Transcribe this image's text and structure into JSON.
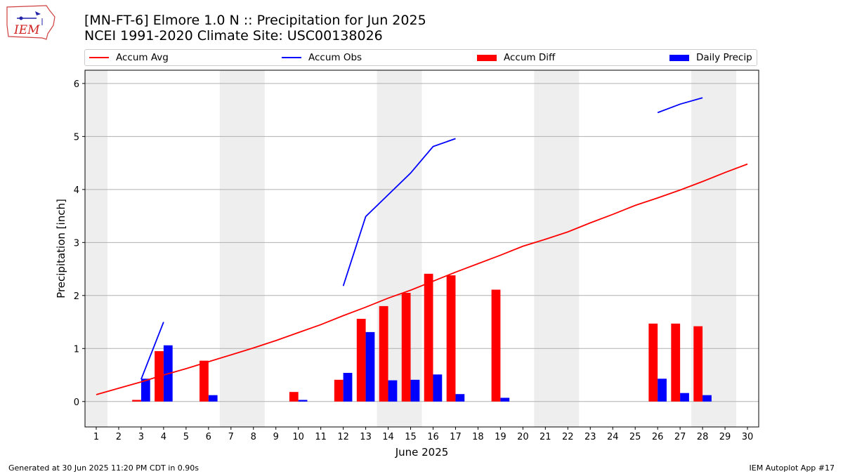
{
  "header": {
    "logo_text": "IEM",
    "title_line1": "[MN-FT-6] Elmore 1.0 N :: Precipitation for Jun 2025",
    "title_line2": "NCEI 1991-2020 Climate Site: USC00138026"
  },
  "legend": {
    "items": [
      {
        "label": "Accum Avg",
        "kind": "line",
        "color": "#ff0000"
      },
      {
        "label": "Accum Obs",
        "kind": "line",
        "color": "#0000ff"
      },
      {
        "label": "Accum Diff",
        "kind": "patch",
        "color": "#ff0000"
      },
      {
        "label": "Daily Precip",
        "kind": "patch",
        "color": "#0000ff"
      }
    ]
  },
  "footer": {
    "left": "Generated at 30 Jun 2025 11:20 PM CDT in 0.90s",
    "right": "IEM Autoplot App #17"
  },
  "chart_data": {
    "type": "bar",
    "xlabel": "June 2025",
    "ylabel": "Precipitation [inch]",
    "xlim": [
      0.5,
      30.5
    ],
    "ylim": [
      -0.48,
      6.25
    ],
    "xticks": [
      "1",
      "2",
      "3",
      "4",
      "5",
      "6",
      "7",
      "8",
      "9",
      "10",
      "11",
      "12",
      "13",
      "14",
      "15",
      "16",
      "17",
      "18",
      "19",
      "20",
      "21",
      "22",
      "23",
      "24",
      "25",
      "26",
      "27",
      "28",
      "29",
      "30"
    ],
    "yticks": [
      0,
      1,
      2,
      3,
      4,
      5,
      6
    ],
    "grid": "horizontal",
    "weekend_shading": [
      [
        0.5,
        1.5
      ],
      [
        6.5,
        8.5
      ],
      [
        13.5,
        15.5
      ],
      [
        20.5,
        22.5
      ],
      [
        27.5,
        29.5
      ]
    ],
    "shade_color": "#eeeeee",
    "series": [
      {
        "name": "Accum Avg",
        "kind": "line",
        "color": "#ff0000",
        "x": [
          1,
          2,
          3,
          4,
          5,
          6,
          7,
          8,
          9,
          10,
          11,
          12,
          13,
          14,
          15,
          16,
          17,
          18,
          19,
          20,
          21,
          22,
          23,
          24,
          25,
          26,
          27,
          28,
          29,
          30
        ],
        "values": [
          0.13,
          0.25,
          0.37,
          0.5,
          0.62,
          0.75,
          0.88,
          1.01,
          1.15,
          1.3,
          1.45,
          1.62,
          1.78,
          1.95,
          2.1,
          2.27,
          2.44,
          2.6,
          2.76,
          2.93,
          3.06,
          3.2,
          3.37,
          3.53,
          3.7,
          3.84,
          3.99,
          4.15,
          4.32,
          4.48
        ]
      },
      {
        "name": "Accum Obs",
        "kind": "line",
        "color": "#0000ff",
        "segments": [
          {
            "x": [
              3,
              4
            ],
            "values": [
              0.42,
              1.5
            ]
          },
          {
            "x": [
              12,
              13,
              14,
              15,
              16,
              17
            ],
            "values": [
              2.18,
              3.49,
              3.9,
              4.31,
              4.81,
              4.96
            ]
          },
          {
            "x": [
              26,
              27,
              28
            ],
            "values": [
              5.45,
              5.61,
              5.73
            ]
          }
        ]
      },
      {
        "name": "Accum Diff",
        "kind": "bar",
        "color": "#ff0000",
        "x": [
          3,
          4,
          6,
          10,
          12,
          13,
          14,
          15,
          16,
          17,
          19,
          26,
          27,
          28
        ],
        "values": [
          0.03,
          0.95,
          0.77,
          0.18,
          0.41,
          1.56,
          1.8,
          2.05,
          2.41,
          2.38,
          2.11,
          1.47,
          1.47,
          1.42
        ]
      },
      {
        "name": "Daily Precip",
        "kind": "bar",
        "color": "#0000ff",
        "x": [
          3,
          4,
          6,
          10,
          12,
          13,
          14,
          15,
          16,
          17,
          19,
          26,
          27,
          28
        ],
        "values": [
          0.43,
          1.06,
          0.12,
          0.03,
          0.54,
          1.31,
          0.4,
          0.41,
          0.51,
          0.14,
          0.07,
          0.43,
          0.16,
          0.12
        ]
      }
    ]
  }
}
